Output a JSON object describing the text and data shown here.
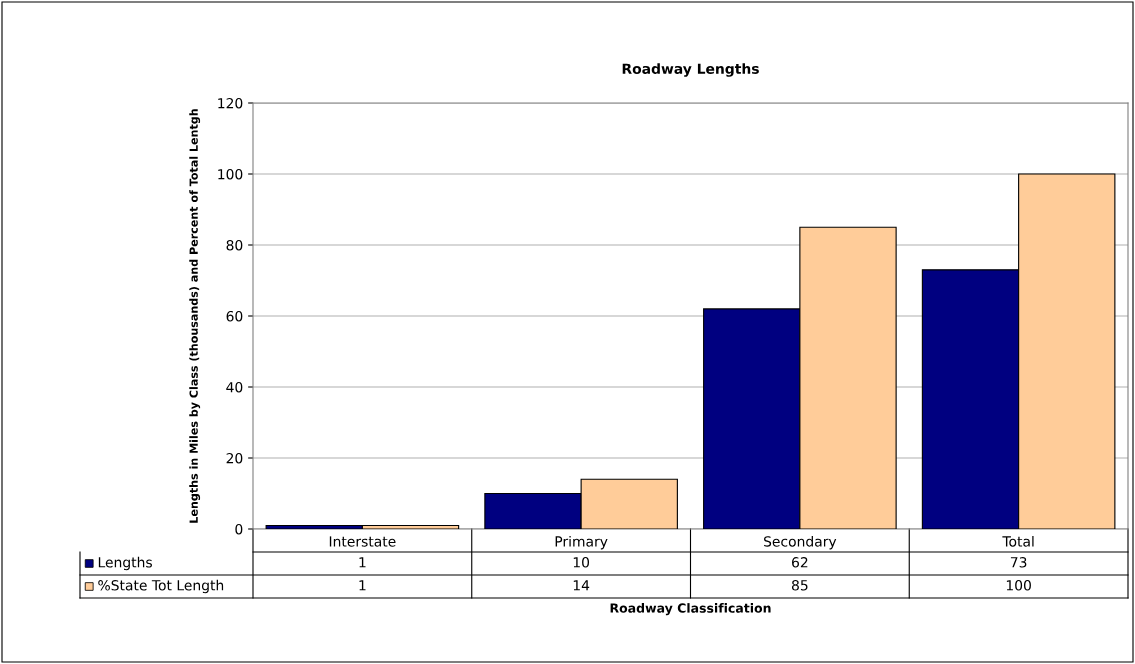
{
  "chart_data": {
    "type": "bar",
    "title": "Roadway Lengths",
    "xlabel": "Roadway Classification",
    "ylabel": "Lengths in Miles by Class (thousands) and Percent of Total Lentgh",
    "categories": [
      "Interstate",
      "Primary",
      "Secondary",
      "Total"
    ],
    "series": [
      {
        "name": "Lengths",
        "color": "#000080",
        "values": [
          1,
          10,
          62,
          73
        ]
      },
      {
        "name": "%State Tot Length",
        "color": "#ffcc99",
        "values": [
          1,
          14,
          85,
          100
        ]
      }
    ],
    "ylim": [
      0,
      120
    ],
    "yticks": [
      0,
      20,
      40,
      60,
      80,
      100,
      120
    ],
    "grid": "y",
    "data_labels": true,
    "legend": "bottom"
  }
}
